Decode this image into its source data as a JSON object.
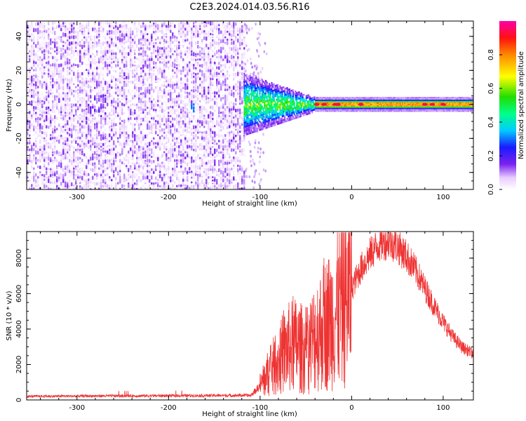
{
  "title": "C2E3.2024.014.03.56.R16",
  "colors": {
    "line": "#ee3333",
    "axis": "#000000"
  },
  "chart_data": [
    {
      "type": "heatmap",
      "title": "C2E3.2024.014.03.56.R16",
      "xlabel": "Height of straight line (km)",
      "ylabel": "Frequency (Hz)",
      "xlim": [
        -355,
        133
      ],
      "ylim": [
        -50,
        49
      ],
      "x_ticks": [
        -300,
        -200,
        -100,
        0,
        100
      ],
      "y_ticks": [
        -40,
        -20,
        0,
        20,
        40
      ],
      "colorbar": {
        "label": "Normalized spectral amplitude",
        "range": [
          0,
          1
        ],
        "ticks": [
          0.0,
          0.2,
          0.4,
          0.6,
          0.8
        ],
        "tick_labels": [
          "0.0",
          "0.2",
          "0.4",
          "0.6",
          "0.8"
        ],
        "colormap": "rainbow"
      },
      "regions": [
        {
          "x": [
            -355,
            -118
          ],
          "freq_band": [
            -50,
            49
          ],
          "amplitude": [
            0.0,
            0.15
          ],
          "note_value": "noise"
        },
        {
          "x": [
            -118,
            -40
          ],
          "freq_band": [
            -7,
            6
          ],
          "amplitude": [
            0.2,
            0.6
          ]
        },
        {
          "x": [
            -40,
            133
          ],
          "freq_band": [
            -2,
            2
          ],
          "amplitude": [
            0.5,
            1.0
          ]
        }
      ]
    },
    {
      "type": "line",
      "xlabel": "Height of straight line (km)",
      "ylabel": "SNR (10 * v/v)",
      "xlim": [
        -355,
        133
      ],
      "ylim": [
        0,
        9500
      ],
      "x_ticks": [
        -300,
        -200,
        -100,
        0,
        100
      ],
      "y_ticks": [
        0,
        2000,
        4000,
        6000,
        8000
      ],
      "series": [
        {
          "x": [
            -355,
            -300,
            -250,
            -200,
            -150,
            -110,
            -100,
            -90,
            -80,
            -70,
            -60,
            -50,
            -40,
            -30,
            -20,
            -10,
            0,
            10,
            20,
            30,
            40,
            50,
            60,
            70,
            80,
            90,
            100,
            110,
            120,
            133
          ],
          "values": [
            200,
            220,
            230,
            240,
            250,
            260,
            800,
            1600,
            2200,
            2900,
            3100,
            2700,
            3600,
            4200,
            4700,
            5500,
            6300,
            7400,
            8200,
            8800,
            9000,
            8700,
            8100,
            7300,
            6300,
            5300,
            4400,
            3600,
            3000,
            2600
          ]
        }
      ]
    }
  ]
}
